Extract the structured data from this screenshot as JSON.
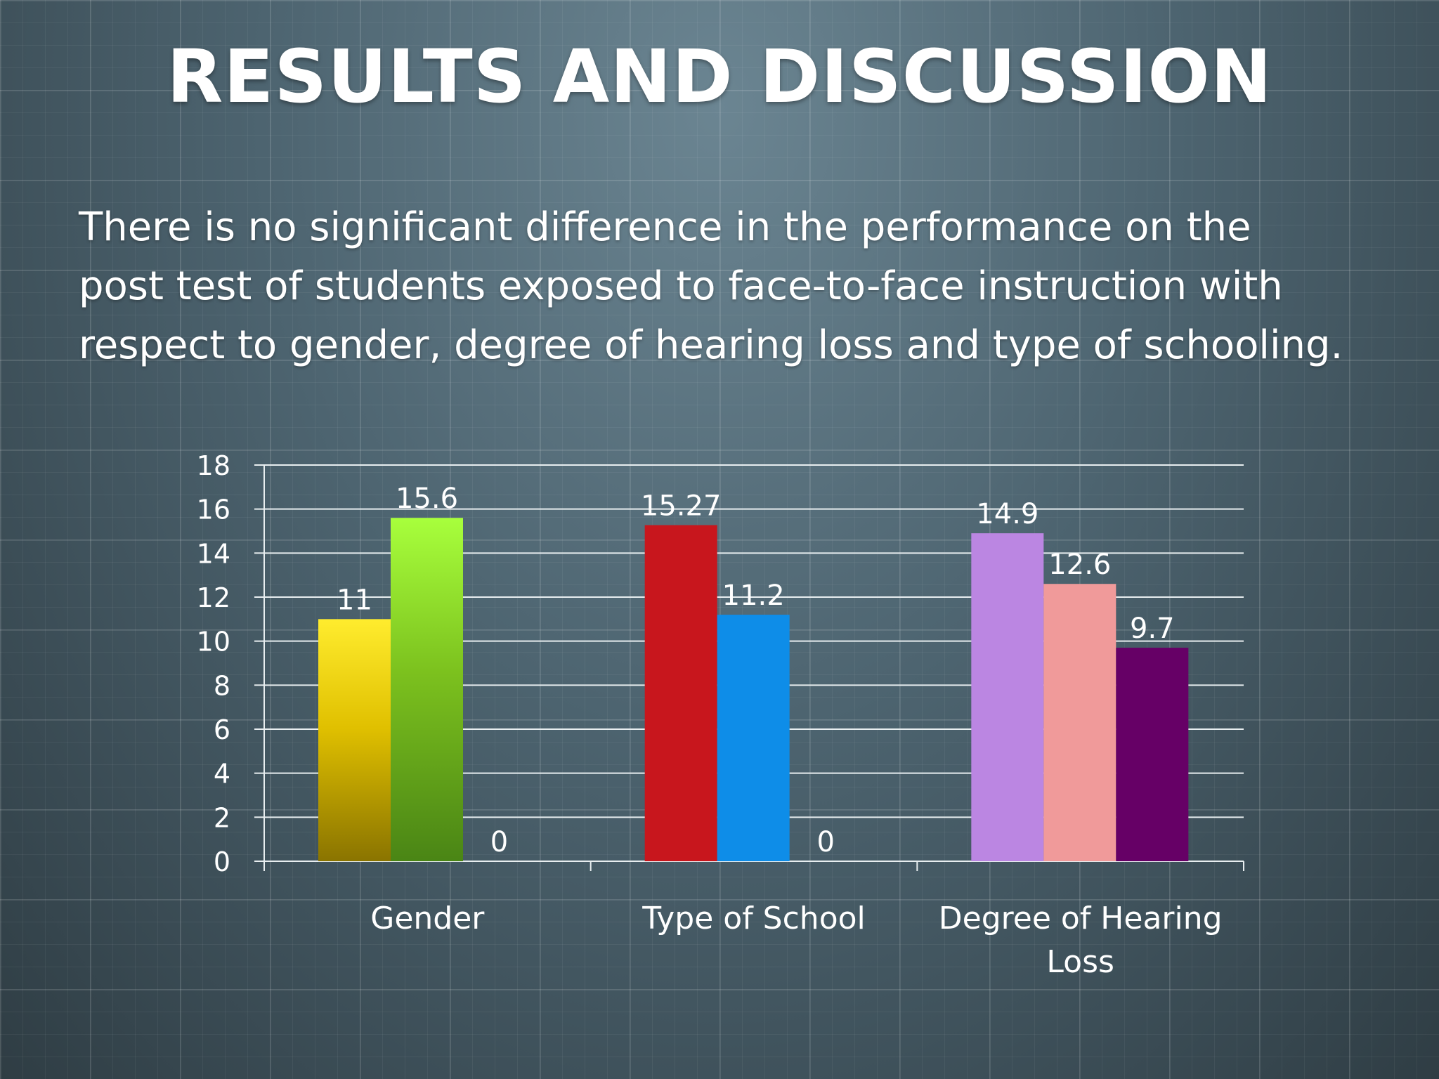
{
  "slide": {
    "title": "RESULTS AND DISCUSSION",
    "lines": [
      "There is no significant difference in the performance on the",
      "post test of students exposed to face-to-face instruction with",
      "respect to gender, degree of hearing loss and type of schooling."
    ]
  },
  "chart_data": {
    "type": "bar",
    "categories": [
      [
        "Gender"
      ],
      [
        "Type of School"
      ],
      [
        "Degree of Hearing",
        "Loss"
      ]
    ],
    "series": [
      {
        "values": [
          11,
          15.27,
          14.9
        ],
        "labels": [
          "11",
          "15.27",
          "14.9"
        ],
        "colors": [
          "#e6c800",
          "#c8161d",
          "#bb86e2"
        ]
      },
      {
        "values": [
          15.6,
          11.2,
          12.6
        ],
        "labels": [
          "15.6",
          "11.2",
          "12.6"
        ],
        "colors": [
          "#7fc622",
          "#0e8de8",
          "#f09a9a"
        ]
      },
      {
        "values": [
          0,
          0,
          9.7
        ],
        "labels": [
          "0",
          "0",
          "9.7"
        ],
        "colors": [
          "#6b0f6b",
          "#6b0f6b",
          "#660066"
        ]
      }
    ],
    "yticks": [
      "0",
      "2",
      "4",
      "6",
      "8",
      "10",
      "12",
      "14",
      "16",
      "18"
    ],
    "ylim": [
      0,
      18
    ],
    "grid": true,
    "legend": "none"
  }
}
